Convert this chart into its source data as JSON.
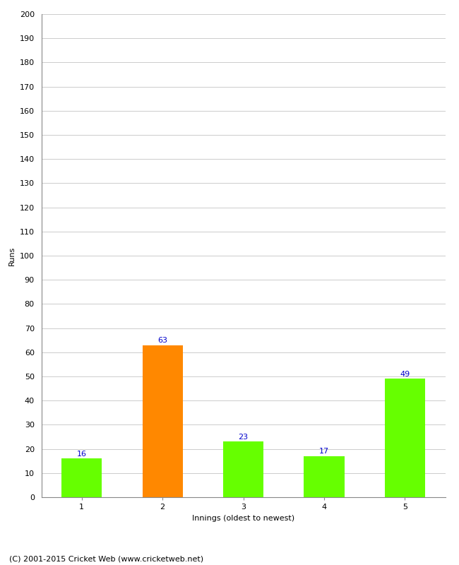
{
  "categories": [
    "1",
    "2",
    "3",
    "4",
    "5"
  ],
  "values": [
    16,
    63,
    23,
    17,
    49
  ],
  "bar_colors": [
    "#66ff00",
    "#ff8800",
    "#66ff00",
    "#66ff00",
    "#66ff00"
  ],
  "xlabel": "Innings (oldest to newest)",
  "ylabel": "Runs",
  "ylim": [
    0,
    200
  ],
  "yticks": [
    0,
    10,
    20,
    30,
    40,
    50,
    60,
    70,
    80,
    90,
    100,
    110,
    120,
    130,
    140,
    150,
    160,
    170,
    180,
    190,
    200
  ],
  "label_color": "#0000cc",
  "label_fontsize": 8,
  "axis_fontsize": 8,
  "xlabel_fontsize": 8,
  "ylabel_fontsize": 8,
  "footer": "(C) 2001-2015 Cricket Web (www.cricketweb.net)",
  "footer_fontsize": 8,
  "background_color": "#ffffff",
  "grid_color": "#cccccc",
  "bar_width": 0.5
}
